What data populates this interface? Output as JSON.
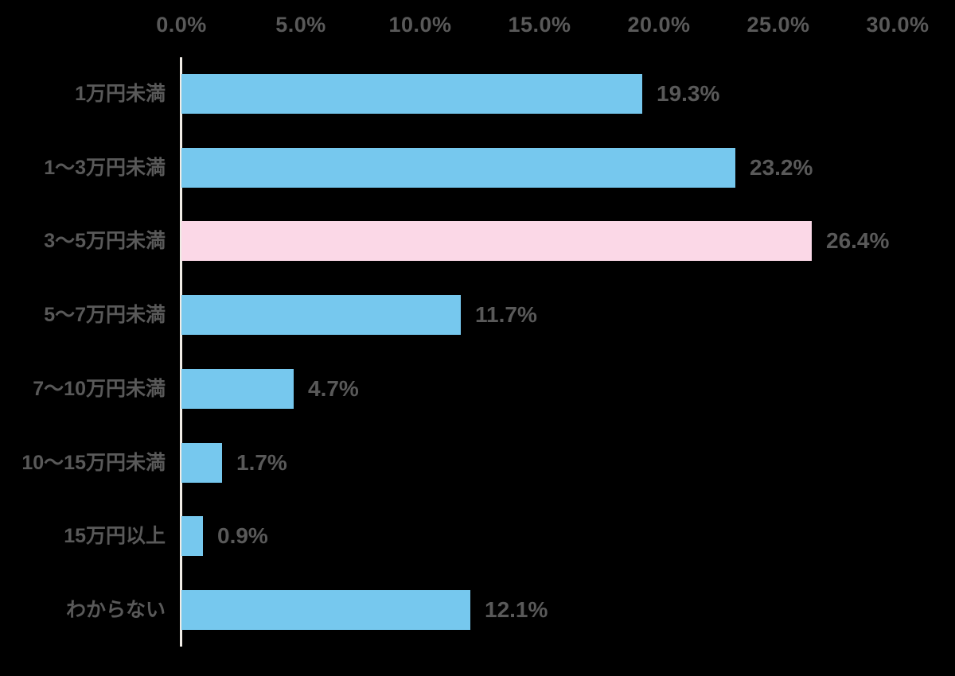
{
  "chart_data": {
    "type": "bar",
    "orientation": "horizontal",
    "categories": [
      "1万円未満",
      "1〜3万円未満",
      "3〜5万円未満",
      "5〜7万円未満",
      "7〜10万円未満",
      "10〜15万円未満",
      "15万円以上",
      "わからない"
    ],
    "values": [
      19.3,
      23.2,
      26.4,
      11.7,
      4.7,
      1.7,
      0.9,
      12.1
    ],
    "value_labels": [
      "19.3%",
      "23.2%",
      "26.4%",
      "11.7%",
      "4.7%",
      "1.7%",
      "0.9%",
      "12.1%"
    ],
    "x_ticks": [
      "0.0%",
      "5.0%",
      "10.0%",
      "15.0%",
      "20.0%",
      "25.0%",
      "30.0%"
    ],
    "xlim": [
      0,
      30
    ],
    "x_tick_step": 5,
    "highlight_index": 2,
    "grid": "off",
    "legend": "none",
    "axis_position": "top"
  },
  "colors": {
    "background": "#000000",
    "bar": "#76C8EE",
    "bar_highlight": "#FBD8E7",
    "text": "#595959",
    "axis_line": "#F0ECE6"
  }
}
